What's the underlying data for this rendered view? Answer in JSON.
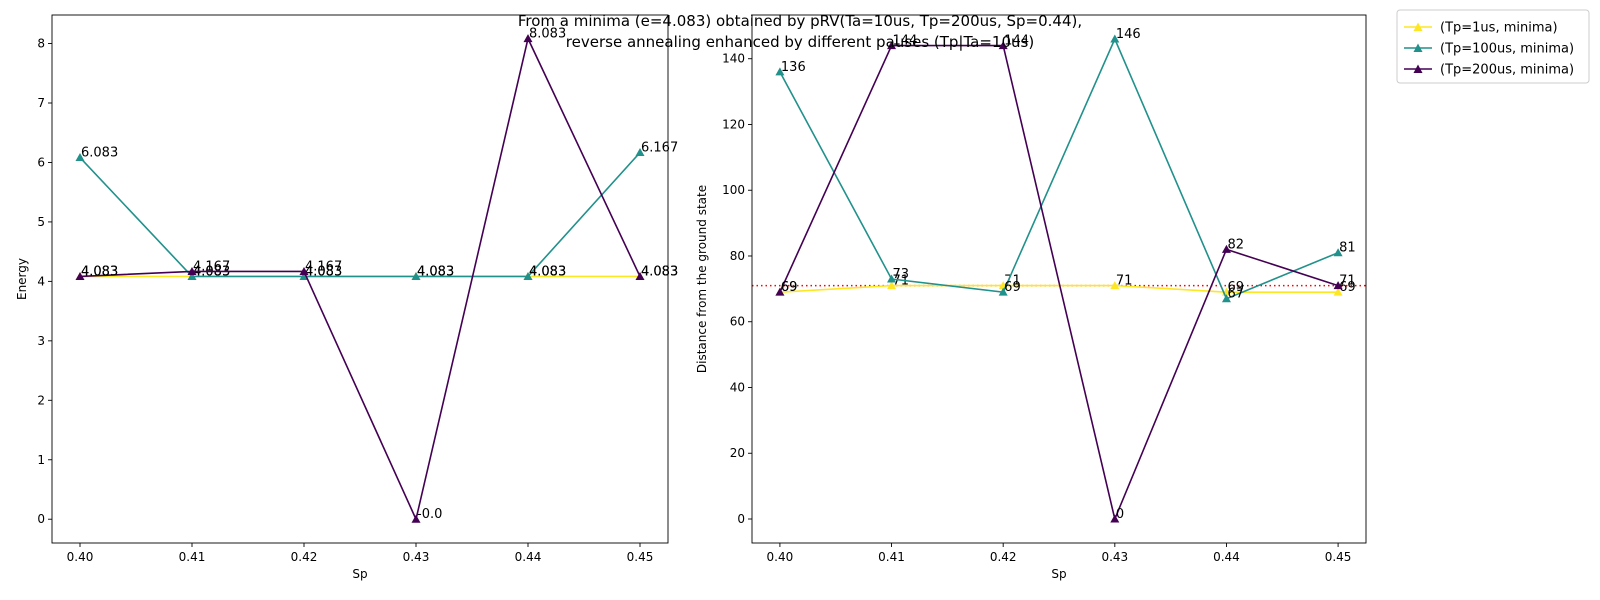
{
  "title_lines": [
    "From a minima (e=4.083) obtained by pRV(Ta=10us, Tp=200us, Sp=0.44),",
    "reverse annealing enhanced by different pauses (Tp|Ta=10us)"
  ],
  "legend": [
    {
      "label": "(Tp=1us, minima)",
      "color": "#fde725"
    },
    {
      "label": "(Tp=100us, minima)",
      "color": "#21918c"
    },
    {
      "label": "(Tp=200us, minima)",
      "color": "#440154"
    }
  ],
  "chart_data": [
    {
      "type": "line",
      "xlabel": "Sp",
      "ylabel": "Energy",
      "x": [
        0.4,
        0.41,
        0.42,
        0.43,
        0.44,
        0.45
      ],
      "x_tick_labels": [
        "0.40",
        "0.41",
        "0.42",
        "0.43",
        "0.44",
        "0.45"
      ],
      "y_ticks": [
        0,
        1,
        2,
        3,
        4,
        5,
        6,
        7,
        8
      ],
      "xlim": [
        0.3975,
        0.4525
      ],
      "ylim": [
        -0.4,
        8.48
      ],
      "marker": "triangle",
      "series": [
        {
          "name": "(Tp=1us, minima)",
          "color": "#fde725",
          "values": [
            4.083,
            4.083,
            4.083,
            4.083,
            4.083,
            4.083
          ],
          "labels": [
            "4.083",
            "4.083",
            "4.083",
            "4.083",
            "4.083",
            "4.083"
          ]
        },
        {
          "name": "(Tp=100us, minima)",
          "color": "#21918c",
          "values": [
            6.083,
            4.083,
            4.083,
            4.083,
            4.083,
            6.167
          ],
          "labels": [
            "6.083",
            "4.083",
            "4.083",
            "4.083",
            "4.083",
            "6.167"
          ]
        },
        {
          "name": "(Tp=200us, minima)",
          "color": "#440154",
          "values": [
            4.083,
            4.167,
            4.167,
            0.0,
            8.083,
            4.083
          ],
          "labels": [
            "4.083",
            "4.167",
            "4.167",
            "-0.0",
            "8.083",
            "4.083"
          ]
        }
      ]
    },
    {
      "type": "line",
      "xlabel": "Sp",
      "ylabel": "Distance from the ground state",
      "x": [
        0.4,
        0.41,
        0.42,
        0.43,
        0.44,
        0.45
      ],
      "x_tick_labels": [
        "0.40",
        "0.41",
        "0.42",
        "0.43",
        "0.44",
        "0.45"
      ],
      "y_ticks": [
        0,
        20,
        40,
        60,
        80,
        100,
        120,
        140
      ],
      "xlim": [
        0.3975,
        0.4525
      ],
      "ylim": [
        -7.3,
        153.3
      ],
      "marker": "triangle",
      "reference_line": {
        "y": 71,
        "color": "#ff0000",
        "style": "dotted"
      },
      "series": [
        {
          "name": "(Tp=1us, minima)",
          "color": "#fde725",
          "values": [
            69,
            71,
            71,
            71,
            69,
            69
          ],
          "labels": [
            "69",
            "71",
            "71",
            "71",
            "69",
            "69"
          ]
        },
        {
          "name": "(Tp=100us, minima)",
          "color": "#21918c",
          "values": [
            136,
            73,
            69,
            146,
            67,
            81
          ],
          "labels": [
            "136",
            "73",
            "69",
            "146",
            "67",
            "81"
          ]
        },
        {
          "name": "(Tp=200us, minima)",
          "color": "#440154",
          "values": [
            69,
            144,
            144,
            0,
            82,
            71
          ],
          "labels": [
            "69",
            "144",
            "144",
            "0",
            "82",
            "71"
          ]
        }
      ]
    }
  ]
}
